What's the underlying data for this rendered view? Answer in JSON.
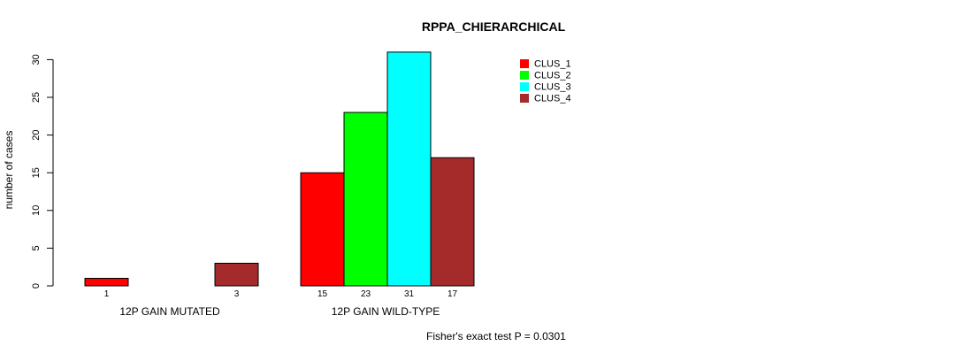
{
  "chart_data": {
    "type": "bar",
    "title": "RPPA_CHIERARCHICAL",
    "xlabel": "",
    "ylabel": "number of cases",
    "ylim": [
      0,
      31
    ],
    "yticks": [
      0,
      5,
      10,
      15,
      20,
      25,
      30
    ],
    "legend_position": "top-right",
    "groups": [
      "12P GAIN MUTATED",
      "12P GAIN WILD-TYPE"
    ],
    "series": [
      {
        "name": "CLUS_1",
        "color": "#ff0000",
        "values": [
          1,
          15
        ]
      },
      {
        "name": "CLUS_2",
        "color": "#00ff00",
        "values": [
          0,
          23
        ]
      },
      {
        "name": "CLUS_3",
        "color": "#00ffff",
        "values": [
          0,
          31
        ]
      },
      {
        "name": "CLUS_4",
        "color": "#a52a2a",
        "values": [
          3,
          17
        ]
      }
    ],
    "annotation": "Fisher's exact test P = 0.0301"
  }
}
